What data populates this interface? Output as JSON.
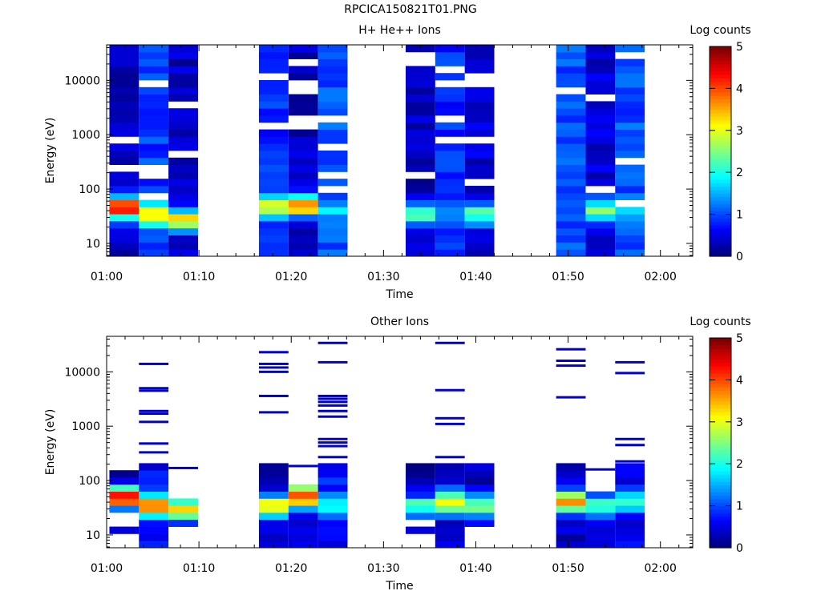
{
  "figure_title": "RPCICA150821T01.PNG",
  "chart_data": [
    {
      "type": "heatmap",
      "title": "H+ He++ Ions",
      "xlabel": "Time",
      "ylabel": "Energy (eV)",
      "colorbar_label": "Log counts",
      "colorbar_ticks": [
        "0",
        "1",
        "2",
        "3",
        "4",
        "5"
      ],
      "colorbar_range": [
        0,
        5
      ],
      "x_ticks": [
        "01:00",
        "01:10",
        "01:20",
        "01:30",
        "01:40",
        "01:50",
        "02:00"
      ],
      "x_tick_minutes": [
        0,
        10,
        20,
        30,
        40,
        50,
        60
      ],
      "xlim_minutes": [
        0,
        63.5
      ],
      "y_scale": "log",
      "y_ticks": [
        "10",
        "100",
        "1000",
        "10000"
      ],
      "y_tick_values": [
        10,
        100,
        1000,
        10000
      ],
      "ylim": [
        5.8,
        45000
      ],
      "time_bins_minutes": [
        [
          0.3,
          3.5
        ],
        [
          3.5,
          6.7
        ],
        [
          6.7,
          9.9
        ],
        [
          16.5,
          19.7
        ],
        [
          19.7,
          22.9
        ],
        [
          22.9,
          26.1
        ],
        [
          32.4,
          35.6
        ],
        [
          35.6,
          38.8
        ],
        [
          38.8,
          42.0
        ],
        [
          48.7,
          51.9
        ],
        [
          51.9,
          55.1
        ],
        [
          55.1,
          58.3
        ]
      ],
      "energy_ranges_eV": [
        [
          [
            5.8,
            45000
          ]
        ],
        [
          [
            5.8,
            45000
          ]
        ],
        [
          [
            5.8,
            45000
          ]
        ],
        [
          [
            5.8,
            45000
          ]
        ],
        [
          [
            5.8,
            45000
          ]
        ],
        [
          [
            5.8,
            45000
          ]
        ],
        [
          [
            5.8,
            45000
          ]
        ],
        [
          [
            5.8,
            45000
          ]
        ],
        [
          [
            5.8,
            45000
          ]
        ],
        [
          [
            5.8,
            45000
          ]
        ],
        [
          [
            5.8,
            45000
          ]
        ],
        [
          [
            5.8,
            45000
          ]
        ]
      ],
      "peak_log_counts": [
        4.4,
        3.6,
        3.3,
        3.3,
        3.8,
        1.7,
        2.3,
        1.3,
        2.4,
        0.9,
        2.6,
        1.6
      ],
      "peak_energy_eV": [
        45,
        35,
        27,
        48,
        50,
        40,
        35,
        35,
        35,
        70,
        40,
        45
      ],
      "background_log_counts": [
        0.3,
        0.9,
        0.3,
        0.8,
        0.3,
        1.0,
        0.3,
        0.8,
        0.4,
        1.0,
        0.4,
        1.0
      ]
    },
    {
      "type": "heatmap",
      "title": "Other Ions",
      "xlabel": "Time",
      "ylabel": "Energy (eV)",
      "colorbar_label": "Log counts",
      "colorbar_ticks": [
        "0",
        "1",
        "2",
        "3",
        "4",
        "5"
      ],
      "colorbar_range": [
        0,
        5
      ],
      "x_ticks": [
        "01:00",
        "01:10",
        "01:20",
        "01:30",
        "01:40",
        "01:50",
        "02:00"
      ],
      "x_tick_minutes": [
        0,
        10,
        20,
        30,
        40,
        50,
        60
      ],
      "xlim_minutes": [
        0,
        63.5
      ],
      "y_scale": "log",
      "y_ticks": [
        "10",
        "100",
        "1000",
        "10000"
      ],
      "y_tick_values": [
        10,
        100,
        1000,
        10000
      ],
      "ylim": [
        5.8,
        45000
      ],
      "time_bins_minutes": [
        [
          0.3,
          3.5
        ],
        [
          3.5,
          6.7
        ],
        [
          6.7,
          9.9
        ],
        [
          16.5,
          19.7
        ],
        [
          19.7,
          22.9
        ],
        [
          22.9,
          26.1
        ],
        [
          32.4,
          35.6
        ],
        [
          35.6,
          38.8
        ],
        [
          38.8,
          42.0
        ],
        [
          48.7,
          51.9
        ],
        [
          51.9,
          55.1
        ],
        [
          55.1,
          58.3
        ]
      ],
      "energy_ranges_eV": [
        [
          [
            10,
            15
          ],
          [
            28,
            135
          ]
        ],
        [
          [
            5.8,
            215
          ]
        ],
        [
          [
            15,
            45
          ]
        ],
        [
          [
            5.8,
            215
          ]
        ],
        [
          [
            5.8,
            75
          ]
        ],
        [
          [
            5.8,
            210
          ]
        ],
        [
          [
            10,
            15
          ],
          [
            18,
            220
          ]
        ],
        [
          [
            5.8,
            210
          ]
        ],
        [
          [
            15,
            190
          ]
        ],
        [
          [
            5.8,
            210
          ]
        ],
        [
          [
            5.8,
            70
          ]
        ],
        [
          [
            5.8,
            200
          ]
        ]
      ],
      "sparse_lines_eV": [
        [],
        [
          14000,
          5000,
          4500,
          1900,
          1700,
          1200,
          480,
          330
        ],
        [
          170
        ],
        [
          23000,
          14000,
          12000,
          10000,
          3600,
          1800
        ],
        [
          185
        ],
        [
          34000,
          15000,
          3600,
          3200,
          2800,
          2400,
          1900,
          1500,
          580,
          500,
          430,
          270
        ],
        [],
        [
          34000,
          4600,
          1400,
          1100,
          270
        ],
        [],
        [
          26000,
          16000,
          13000,
          3400
        ],
        [
          160
        ],
        [
          15000,
          9500,
          580,
          450,
          225
        ]
      ],
      "peak_log_counts": [
        4.5,
        3.8,
        3.3,
        3.2,
        4.2,
        1.8,
        2.2,
        3.2,
        2.6,
        3.6,
        2.3,
        2.3
      ],
      "peak_energy_eV": [
        50,
        35,
        30,
        35,
        50,
        35,
        35,
        40,
        35,
        40,
        35,
        40
      ],
      "background_log_counts": [
        0.2,
        0.6,
        0.2,
        0.3,
        0.5,
        0.7,
        0.2,
        0.4,
        0.3,
        0.3,
        0.3,
        0.5
      ]
    }
  ]
}
